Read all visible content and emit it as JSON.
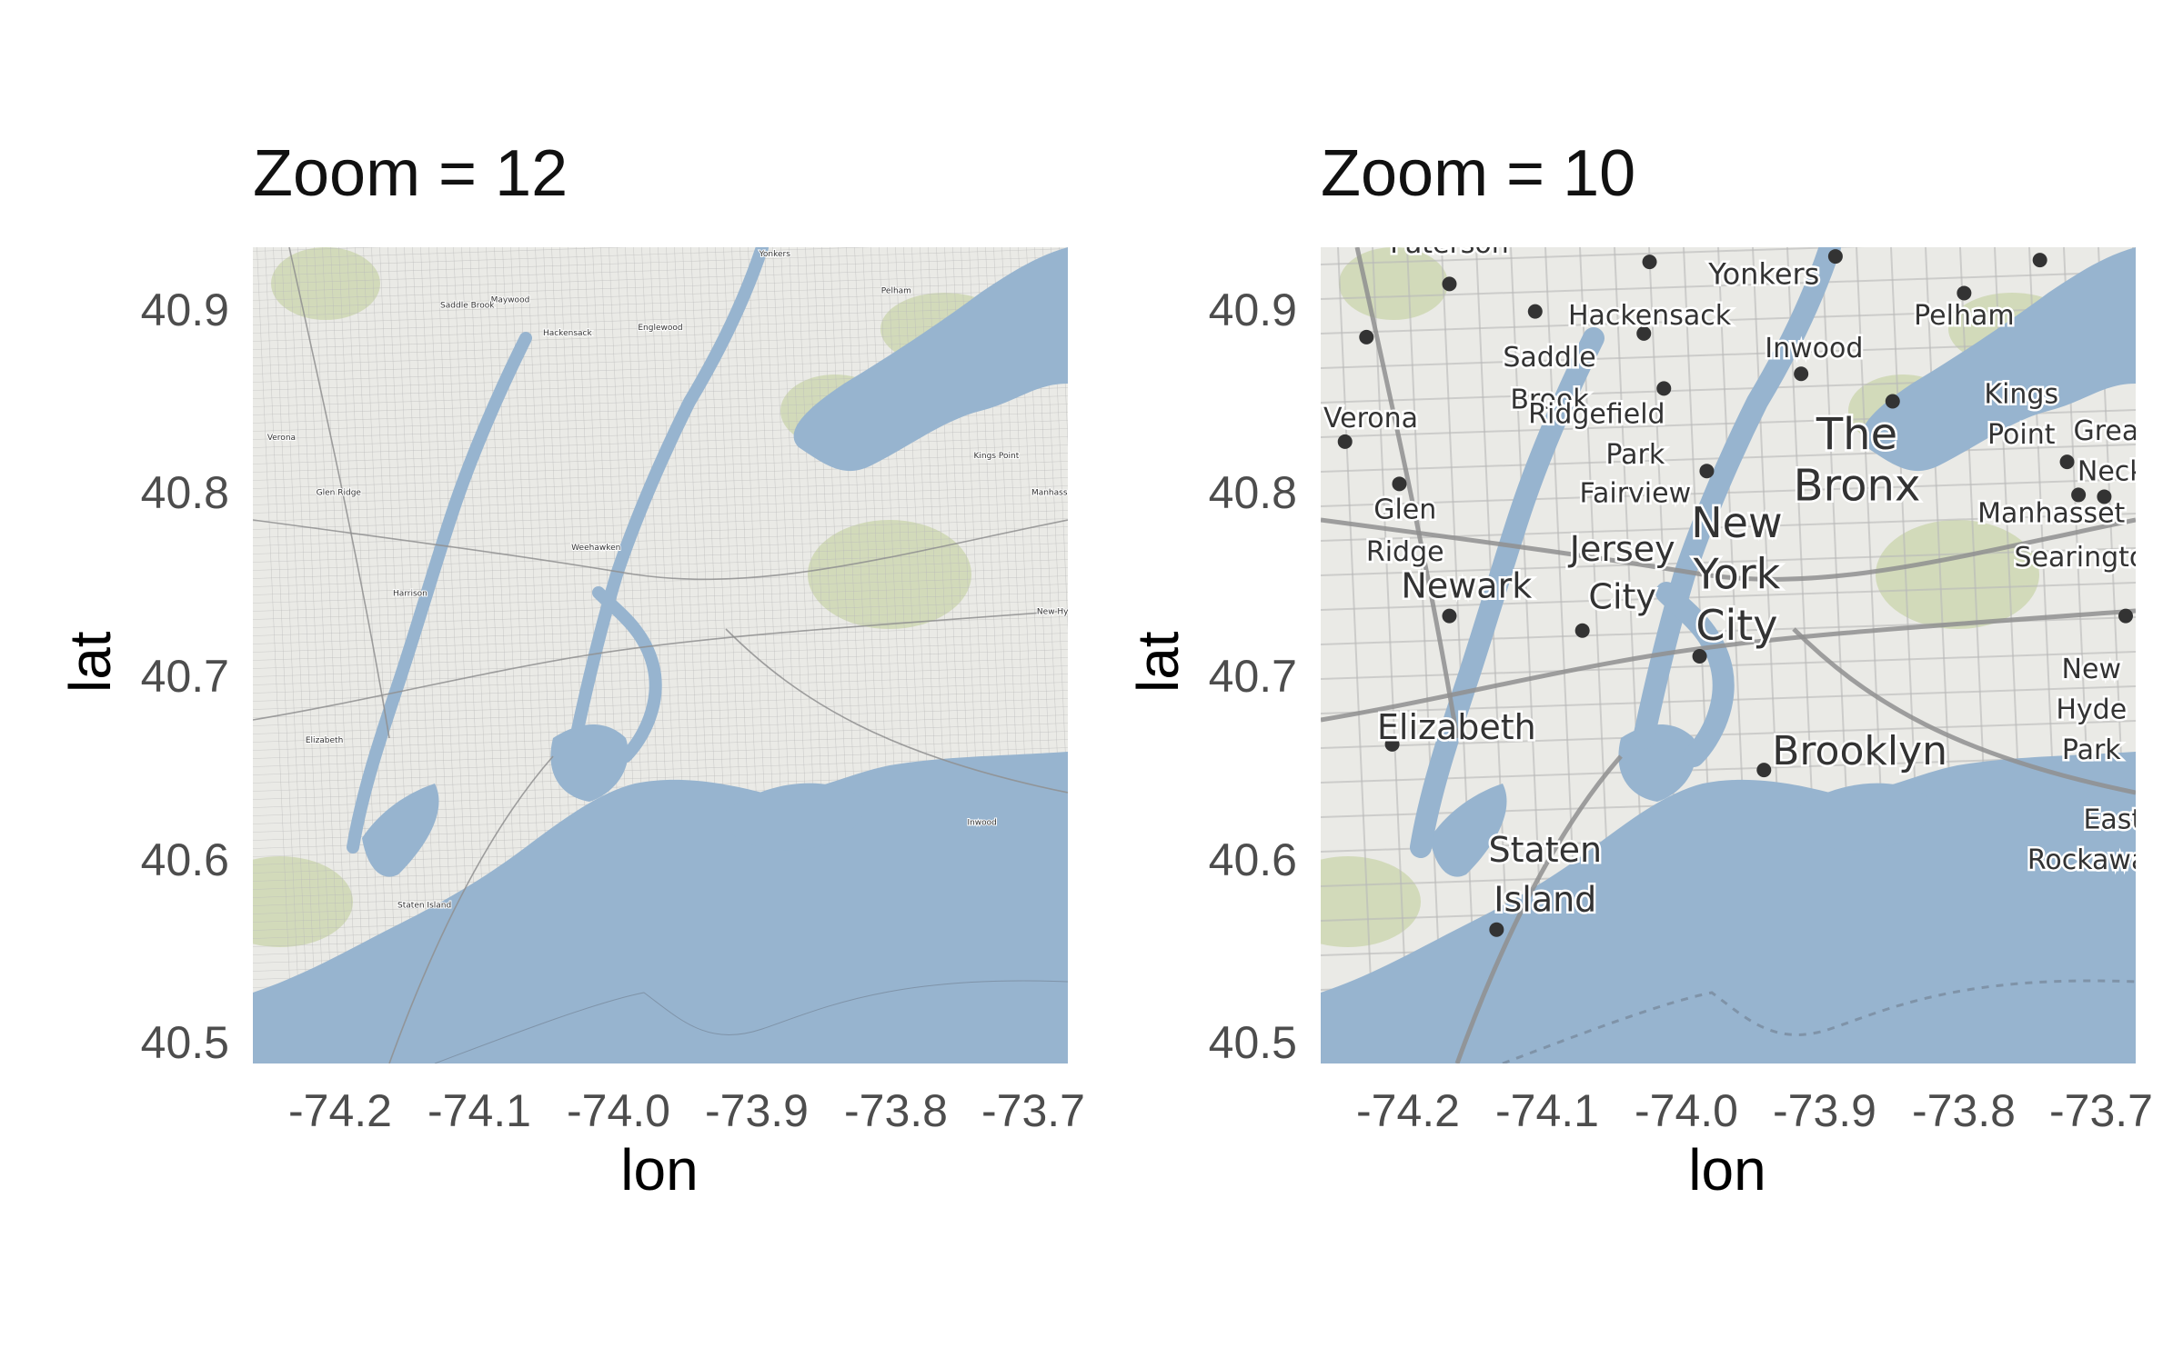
{
  "figure": {
    "colors": {
      "water": "#97b4cf",
      "land": "#eaeae6",
      "road": "#8f8f8f",
      "park": "#c7d3a6",
      "text": "#333333"
    },
    "panels": [
      {
        "title": "Zoom = 12",
        "xlabel": "lon",
        "ylabel": "lat",
        "x_ticks": [
          "-74.2",
          "-74.1",
          "-74.0",
          "-73.9",
          "-73.8",
          "-73.7"
        ],
        "y_ticks": [
          "40.9",
          "40.8",
          "40.7",
          "40.6",
          "40.5"
        ],
        "xlim": [
          -74.26,
          -73.69
        ],
        "ylim": [
          40.49,
          40.935
        ],
        "zoom": 12,
        "places": [
          {
            "name": "Yonkers",
            "lon": -73.895,
            "lat": 40.93
          },
          {
            "name": "Hackensack",
            "lon": -74.04,
            "lat": 40.887
          },
          {
            "name": "Maywood",
            "lon": -74.08,
            "lat": 40.905
          },
          {
            "name": "Saddle Brook",
            "lon": -74.11,
            "lat": 40.902
          },
          {
            "name": "Englewood",
            "lon": -73.975,
            "lat": 40.89
          },
          {
            "name": "Pelham",
            "lon": -73.81,
            "lat": 40.91
          },
          {
            "name": "Glen Ridge",
            "lon": -74.2,
            "lat": 40.8
          },
          {
            "name": "Verona",
            "lon": -74.24,
            "lat": 40.83
          },
          {
            "name": "Kings Point",
            "lon": -73.74,
            "lat": 40.82
          },
          {
            "name": "Manhasset",
            "lon": -73.7,
            "lat": 40.8
          },
          {
            "name": "Harrison",
            "lon": -74.15,
            "lat": 40.745
          },
          {
            "name": "Elizabeth",
            "lon": -74.21,
            "lat": 40.665
          },
          {
            "name": "Staten Island",
            "lon": -74.14,
            "lat": 40.575
          },
          {
            "name": "Weehawken",
            "lon": -74.02,
            "lat": 40.77
          },
          {
            "name": "Inwood",
            "lon": -73.75,
            "lat": 40.62
          },
          {
            "name": "New Hyde Park",
            "lon": -73.69,
            "lat": 40.735
          }
        ]
      },
      {
        "title": "Zoom = 10",
        "xlabel": "lon",
        "ylabel": "lat",
        "x_ticks": [
          "-74.2",
          "-74.1",
          "-74.0",
          "-73.9",
          "-73.8",
          "-73.7"
        ],
        "y_ticks": [
          "40.9",
          "40.8",
          "40.7",
          "40.6",
          "40.5"
        ],
        "xlim": [
          -74.26,
          -73.69
        ],
        "ylim": [
          40.49,
          40.935
        ],
        "zoom": 10,
        "places": [
          {
            "name": "Paterson",
            "lon": -74.17,
            "lat": 40.932,
            "size": 30
          },
          {
            "name": "Yonkers",
            "lon": -73.95,
            "lat": 40.915,
            "size": 32
          },
          {
            "name": "Hackensack",
            "lon": -74.03,
            "lat": 40.893,
            "size": 30
          },
          {
            "name": "Saddle",
            "lon": -74.1,
            "lat": 40.87,
            "size": 30
          },
          {
            "name": "Brook",
            "lon": -74.1,
            "lat": 40.847,
            "size": 30
          },
          {
            "name": "Pelham",
            "lon": -73.81,
            "lat": 40.893,
            "size": 30
          },
          {
            "name": "Inwood",
            "lon": -73.915,
            "lat": 40.875,
            "size": 30
          },
          {
            "name": "Kings",
            "lon": -73.77,
            "lat": 40.85,
            "size": 30
          },
          {
            "name": "Point",
            "lon": -73.77,
            "lat": 40.828,
            "size": 30
          },
          {
            "name": "Great",
            "lon": -73.707,
            "lat": 40.83,
            "size": 30
          },
          {
            "name": "Neck",
            "lon": -73.707,
            "lat": 40.808,
            "size": 30
          },
          {
            "name": "Verona",
            "lon": -74.225,
            "lat": 40.837,
            "size": 30
          },
          {
            "name": "Ridgefield",
            "lon": -74.067,
            "lat": 40.839,
            "size": 30
          },
          {
            "name": "Park",
            "lon": -74.04,
            "lat": 40.817,
            "size": 30
          },
          {
            "name": "Fairview",
            "lon": -74.04,
            "lat": 40.796,
            "size": 30
          },
          {
            "name": "The",
            "lon": -73.885,
            "lat": 40.825,
            "size": 48
          },
          {
            "name": "Bronx",
            "lon": -73.885,
            "lat": 40.797,
            "size": 48
          },
          {
            "name": "Glen",
            "lon": -74.201,
            "lat": 40.787,
            "size": 30
          },
          {
            "name": "Ridge",
            "lon": -74.201,
            "lat": 40.764,
            "size": 30
          },
          {
            "name": "Jersey",
            "lon": -74.049,
            "lat": 40.764,
            "size": 38
          },
          {
            "name": "City",
            "lon": -74.049,
            "lat": 40.738,
            "size": 38
          },
          {
            "name": "New",
            "lon": -73.969,
            "lat": 40.777,
            "size": 46
          },
          {
            "name": "York",
            "lon": -73.969,
            "lat": 40.749,
            "size": 46
          },
          {
            "name": "City",
            "lon": -73.969,
            "lat": 40.721,
            "size": 46
          },
          {
            "name": "Newark",
            "lon": -74.158,
            "lat": 40.744,
            "size": 38
          },
          {
            "name": "Manhasset",
            "lon": -73.749,
            "lat": 40.785,
            "size": 30
          },
          {
            "name": "Searingtown",
            "lon": -73.715,
            "lat": 40.761,
            "size": 30
          },
          {
            "name": "Elizabeth",
            "lon": -74.165,
            "lat": 40.667,
            "size": 38
          },
          {
            "name": "Brooklyn",
            "lon": -73.883,
            "lat": 40.653,
            "size": 44
          },
          {
            "name": "New",
            "lon": -73.721,
            "lat": 40.7,
            "size": 30
          },
          {
            "name": "Hyde",
            "lon": -73.721,
            "lat": 40.678,
            "size": 30
          },
          {
            "name": "Park",
            "lon": -73.721,
            "lat": 40.656,
            "size": 30
          },
          {
            "name": "East",
            "lon": -73.706,
            "lat": 40.618,
            "size": 30
          },
          {
            "name": "Rockaway",
            "lon": -73.718,
            "lat": 40.596,
            "size": 30
          },
          {
            "name": "Staten",
            "lon": -74.103,
            "lat": 40.6,
            "size": 38
          },
          {
            "name": "Island",
            "lon": -74.103,
            "lat": 40.573,
            "size": 38
          }
        ],
        "dots": [
          {
            "lon": -74.17,
            "lat": 40.915
          },
          {
            "lon": -74.03,
            "lat": 40.927
          },
          {
            "lon": -73.9,
            "lat": 40.93
          },
          {
            "lon": -73.757,
            "lat": 40.928
          },
          {
            "lon": -73.81,
            "lat": 40.91
          },
          {
            "lon": -74.228,
            "lat": 40.886
          },
          {
            "lon": -74.11,
            "lat": 40.9
          },
          {
            "lon": -74.034,
            "lat": 40.888
          },
          {
            "lon": -74.02,
            "lat": 40.858
          },
          {
            "lon": -73.924,
            "lat": 40.866
          },
          {
            "lon": -73.86,
            "lat": 40.851
          },
          {
            "lon": -74.243,
            "lat": 40.829
          },
          {
            "lon": -74.205,
            "lat": 40.806
          },
          {
            "lon": -73.99,
            "lat": 40.813
          },
          {
            "lon": -73.738,
            "lat": 40.818
          },
          {
            "lon": -73.73,
            "lat": 40.8
          },
          {
            "lon": -73.712,
            "lat": 40.799
          },
          {
            "lon": -74.17,
            "lat": 40.734
          },
          {
            "lon": -74.077,
            "lat": 40.726
          },
          {
            "lon": -73.995,
            "lat": 40.712
          },
          {
            "lon": -73.95,
            "lat": 40.65
          },
          {
            "lon": -74.21,
            "lat": 40.664
          },
          {
            "lon": -74.137,
            "lat": 40.563
          },
          {
            "lon": -73.697,
            "lat": 40.734
          }
        ]
      }
    ]
  }
}
